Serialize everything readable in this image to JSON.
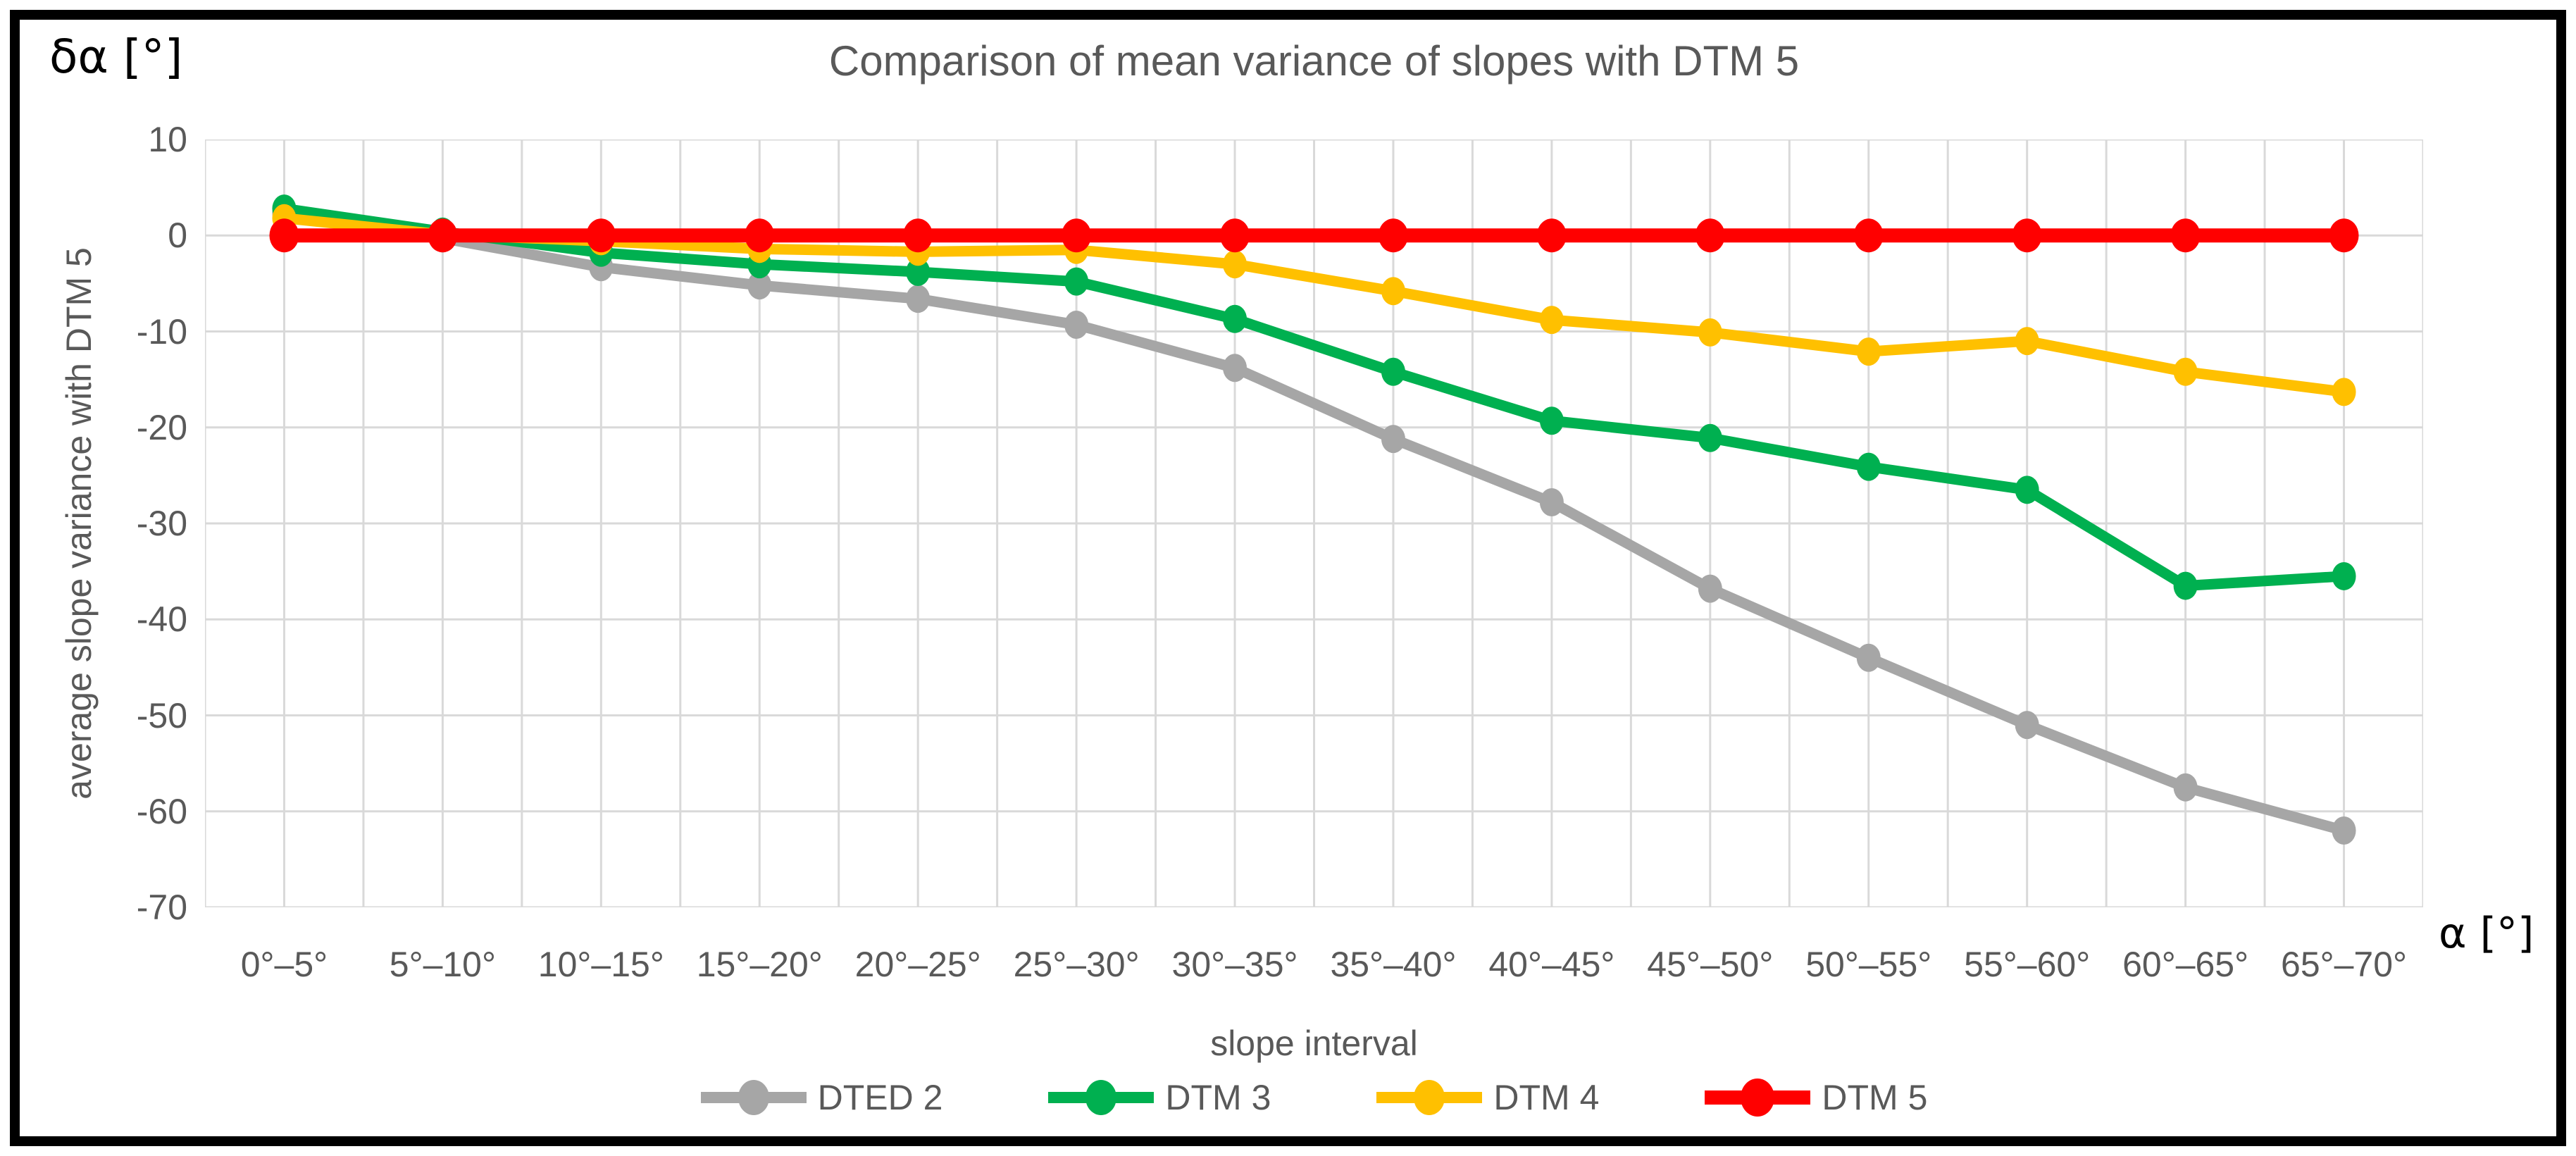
{
  "frame": {
    "border_color": "#000000"
  },
  "labels": {
    "y_unit": "δα [°]",
    "x_unit": "α [°]"
  },
  "chart_data": {
    "type": "line",
    "title": "Comparison of mean variance of slopes with DTM 5",
    "xlabel": "slope interval",
    "ylabel": "average slope variance with DTM 5",
    "x_unit_label": "α [°]",
    "y_unit_label": "δα [°]",
    "ylim": [
      -70,
      10
    ],
    "ytick_step": 10,
    "yticks": [
      10,
      0,
      -10,
      -20,
      -30,
      -40,
      -50,
      -60,
      -70
    ],
    "grid": true,
    "legend_position": "bottom",
    "categories": [
      "0°–5°",
      "5°–10°",
      "10°–15°",
      "15°–20°",
      "20°–25°",
      "25°–30°",
      "30°–35°",
      "35°–40°",
      "40°–45°",
      "45°–50°",
      "50°–55°",
      "55°–60°",
      "60°–65°",
      "65°–70°"
    ],
    "series": [
      {
        "name": "DTED 2",
        "color": "#A6A6A6",
        "values": [
          2.3,
          -0.3,
          -3.3,
          -5.2,
          -6.6,
          -9.3,
          -13.8,
          -21.2,
          -27.8,
          -36.8,
          -44.0,
          -51.0,
          -57.5,
          -62.0
        ]
      },
      {
        "name": "DTM 3",
        "color": "#00B050",
        "values": [
          2.8,
          0.4,
          -1.8,
          -3.0,
          -3.8,
          -4.8,
          -8.7,
          -14.2,
          -19.3,
          -21.1,
          -24.1,
          -26.5,
          -36.5,
          -35.5
        ]
      },
      {
        "name": "DTM 4",
        "color": "#FFC000",
        "values": [
          1.8,
          0.1,
          -0.6,
          -1.4,
          -1.7,
          -1.5,
          -3.0,
          -5.8,
          -8.8,
          -10.1,
          -12.1,
          -11.0,
          -14.2,
          -16.3
        ]
      },
      {
        "name": "DTM 5",
        "color": "#FF0000",
        "values": [
          0,
          0,
          0,
          0,
          0,
          0,
          0,
          0,
          0,
          0,
          0,
          0,
          0,
          0
        ]
      }
    ]
  },
  "styles": {
    "text_color": "#595959",
    "grid_color": "#D9D9D9",
    "background": "#FFFFFF",
    "series_colors": {
      "gray": "#A6A6A6",
      "green": "#00B050",
      "yellow": "#FFC000",
      "red": "#FF0000"
    }
  }
}
